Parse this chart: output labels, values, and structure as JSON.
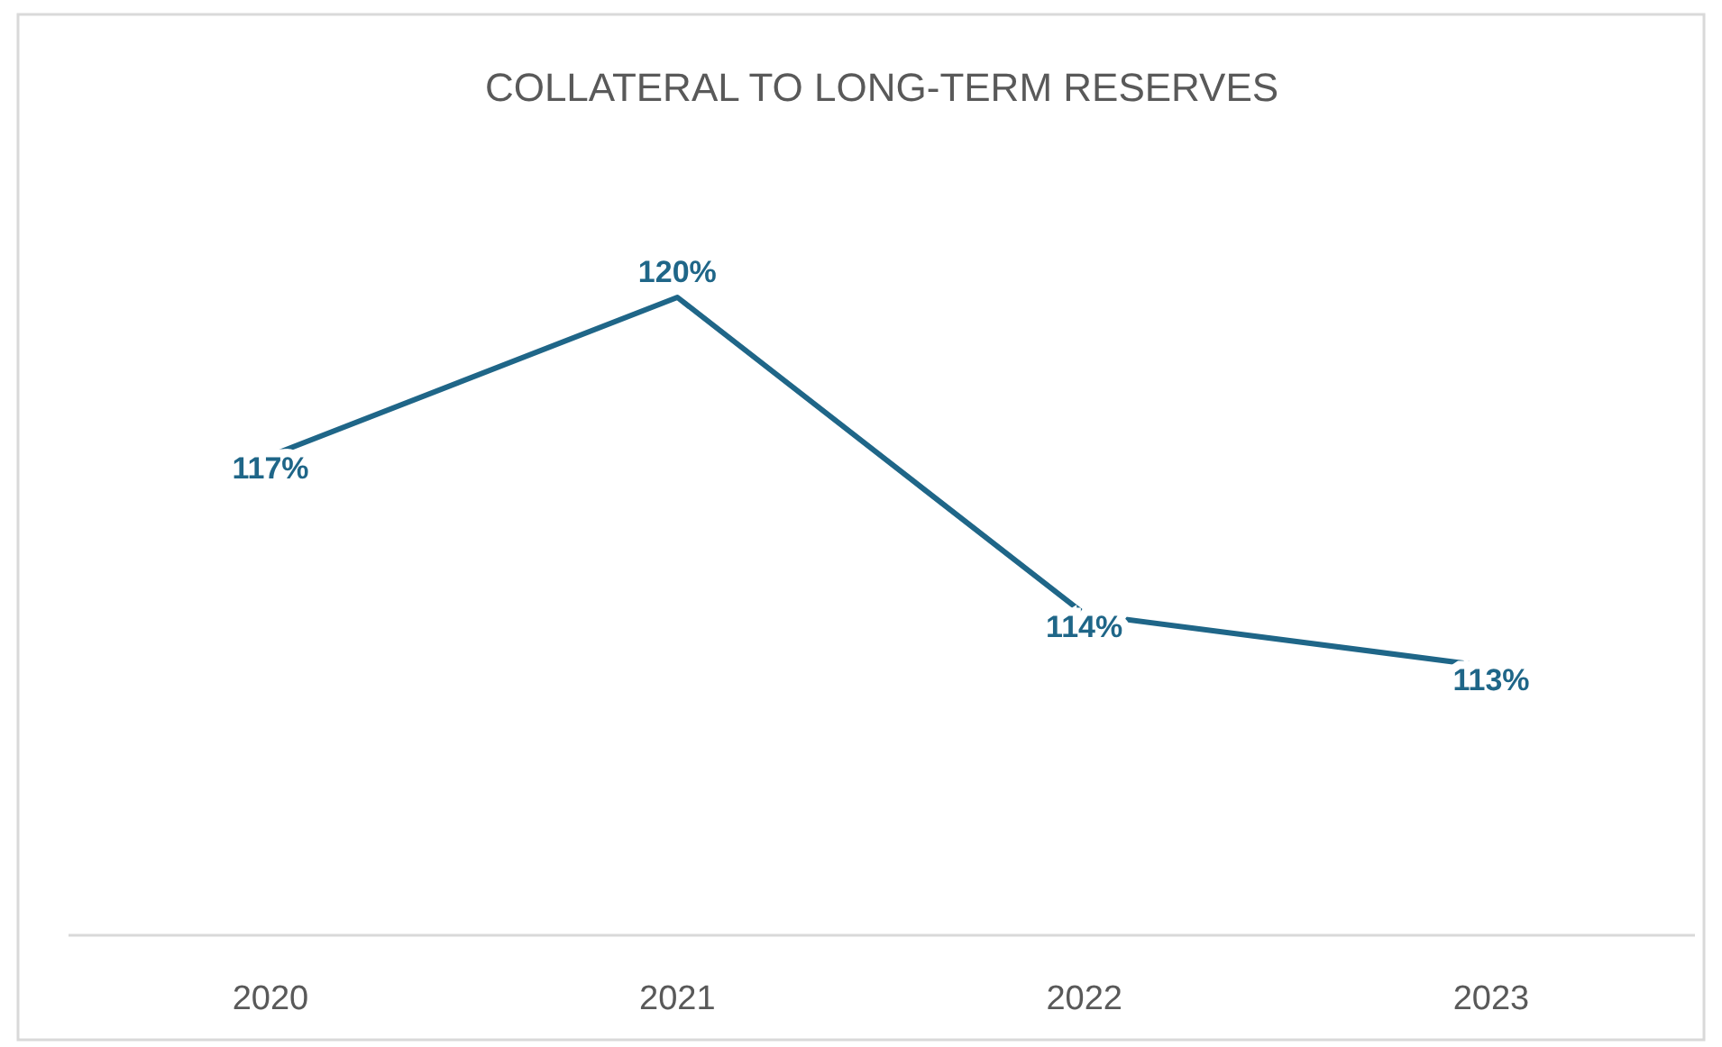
{
  "chart_data": {
    "type": "line",
    "title": "COLLATERAL TO LONG-TERM RESERVES",
    "categories": [
      "2020",
      "2021",
      "2022",
      "2023"
    ],
    "series": [
      {
        "color": "#1f6688",
        "values": [
          117,
          120,
          114,
          113
        ],
        "value_labels": [
          "117%",
          "120%",
          "114%",
          "113%"
        ]
      }
    ],
    "marker": "none"
  }
}
